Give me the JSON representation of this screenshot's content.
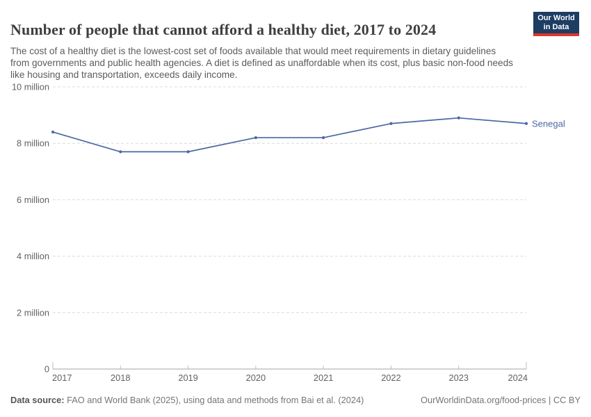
{
  "header": {
    "title": "Number of people that cannot afford a healthy diet, 2017 to 2024",
    "subtitle": "The cost of a healthy diet is the lowest-cost set of foods available that would meet requirements in dietary guidelines from governments and public health agencies. A diet is defined as unaffordable when its cost, plus basic non-food needs like housing and transportation, exceeds daily income.",
    "logo": {
      "line1": "Our World",
      "line2": "in Data",
      "bg_color": "#1d3d63",
      "accent_color": "#dc352b"
    }
  },
  "chart_data": {
    "type": "line",
    "title": "Number of people that cannot afford a healthy diet, 2017 to 2024",
    "x": [
      2017,
      2018,
      2019,
      2020,
      2021,
      2022,
      2023,
      2024
    ],
    "x_labels": [
      "2017",
      "2018",
      "2019",
      "2020",
      "2021",
      "2022",
      "2023",
      "2024"
    ],
    "series": [
      {
        "name": "Senegal",
        "values": [
          8400000,
          7700000,
          7700000,
          8200000,
          8200000,
          8700000,
          8900000,
          8700000
        ],
        "color": "#4a67a3"
      }
    ],
    "xlabel": "",
    "ylabel": "",
    "ylim": [
      0,
      10000000
    ],
    "yticks": [
      {
        "value": 0,
        "label": "0"
      },
      {
        "value": 2000000,
        "label": "2 million"
      },
      {
        "value": 4000000,
        "label": "4 million"
      },
      {
        "value": 6000000,
        "label": "6 million"
      },
      {
        "value": 8000000,
        "label": "8 million"
      },
      {
        "value": 10000000,
        "label": "10 million"
      }
    ],
    "grid": true,
    "grid_color": "#dcdcdc",
    "axis_color": "#a3a3a3",
    "tick_label_color": "#616161",
    "legend_position": "end-of-line"
  },
  "footer": {
    "source_label": "Data source:",
    "source_text": " FAO and World Bank (2025), using data and methods from Bai et al. (2024)",
    "right_text": "OurWorldinData.org/food-prices | CC BY"
  }
}
